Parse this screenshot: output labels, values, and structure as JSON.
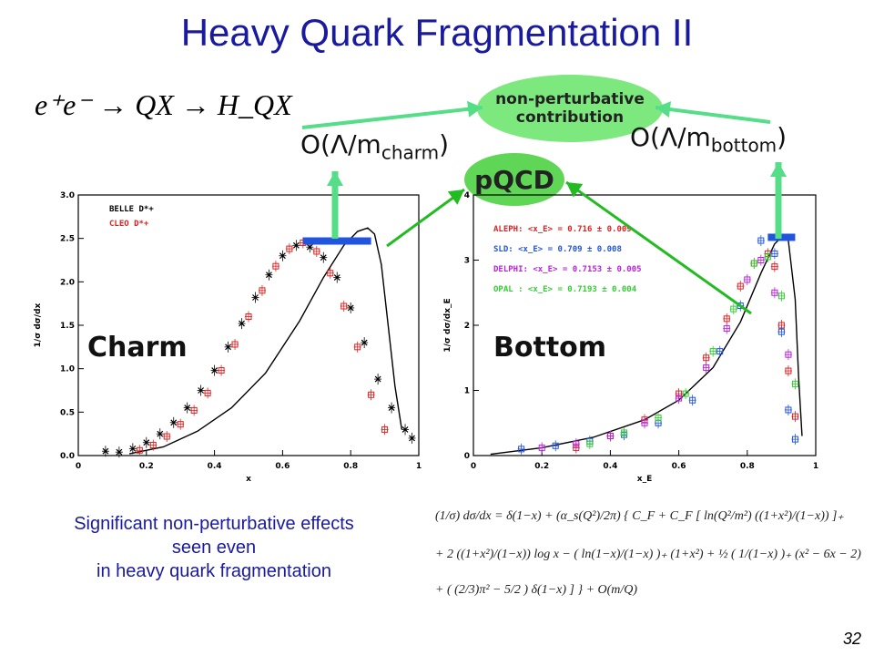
{
  "title": "Heavy Quark Fragmentation II",
  "reaction": "e⁺e⁻ → QX → H_QX",
  "annotations": {
    "non_perturbative": "non-perturbative contribution",
    "pqcd": "pQCD",
    "order_charm_prefix": "O(Λ/m",
    "order_charm_sub": "charm",
    "order_bottom_prefix": "O(Λ/m",
    "order_bottom_sub": "bottom",
    "close_paren": ")",
    "charm_label": "Charm",
    "bottom_label": "Bottom"
  },
  "caption": [
    "Significant non-perturbative effects",
    "seen even",
    "in heavy quark fragmentation"
  ],
  "formula_lines": [
    "(1/σ) dσ/dx  =  δ(1−x) + (α_s(Q²)/2π) { C_F + C_F [ ln(Q²/m²) ((1+x²)/(1−x)) ]₊",
    "+  2 ((1+x²)/(1−x)) log x − ( ln(1−x)/(1−x) )₊ (1+x²) + ½ ( 1/(1−x) )₊ (x² − 6x − 2)",
    "+  ( (2/3)π² − 5/2 ) δ(1−x) ] }  +  O(m/Q)"
  ],
  "page_number": "32",
  "colors": {
    "title": "#1a1aa0",
    "bubble": "#7de87d",
    "arrow": "#55dd88",
    "bar": "#2255dd"
  },
  "chart_data": [
    {
      "type": "scatter",
      "ylabel": "1/σ dσ/dx",
      "xlabel": "x",
      "xlim": [
        0,
        1
      ],
      "ylim": [
        0,
        3.0
      ],
      "xticks": [
        "0",
        "0.2",
        "0.4",
        "0.6",
        "0.8",
        "1"
      ],
      "yticks": [
        "0.0",
        "0.5",
        "1.0",
        "1.5",
        "2.0",
        "2.5",
        "3.0"
      ],
      "legend": [
        "BELLE D*+",
        "CLEO D*+"
      ],
      "series": [
        {
          "name": "BELLE D*+",
          "color": "#000000",
          "x": [
            0.08,
            0.12,
            0.16,
            0.2,
            0.24,
            0.28,
            0.32,
            0.36,
            0.4,
            0.44,
            0.48,
            0.52,
            0.56,
            0.6,
            0.64,
            0.68,
            0.72,
            0.76,
            0.8,
            0.84,
            0.88,
            0.92,
            0.96,
            0.98
          ],
          "y": [
            0.05,
            0.04,
            0.08,
            0.15,
            0.25,
            0.38,
            0.55,
            0.75,
            0.98,
            1.25,
            1.52,
            1.82,
            2.08,
            2.3,
            2.42,
            2.4,
            2.28,
            2.05,
            1.7,
            1.3,
            0.88,
            0.55,
            0.3,
            0.2
          ]
        },
        {
          "name": "CLEO D*+",
          "color": "#dd2222",
          "x": [
            0.18,
            0.22,
            0.26,
            0.3,
            0.34,
            0.38,
            0.42,
            0.46,
            0.5,
            0.54,
            0.58,
            0.62,
            0.66,
            0.7,
            0.74,
            0.78,
            0.82,
            0.86,
            0.9
          ],
          "y": [
            0.06,
            0.12,
            0.22,
            0.36,
            0.52,
            0.72,
            0.98,
            1.28,
            1.6,
            1.9,
            2.18,
            2.38,
            2.45,
            2.35,
            2.1,
            1.72,
            1.25,
            0.7,
            0.3
          ]
        }
      ],
      "theory_curve": {
        "x": [
          0.15,
          0.25,
          0.35,
          0.45,
          0.55,
          0.65,
          0.72,
          0.78,
          0.82,
          0.85,
          0.87,
          0.89,
          0.91,
          0.93,
          0.95
        ],
        "y": [
          0.02,
          0.1,
          0.28,
          0.55,
          0.95,
          1.55,
          2.05,
          2.42,
          2.58,
          2.62,
          2.55,
          2.2,
          1.5,
          0.8,
          0.3
        ]
      }
    },
    {
      "type": "scatter",
      "ylabel": "1/σ dσ/dx_E",
      "xlabel": "x_E",
      "xlim": [
        0,
        1
      ],
      "ylim": [
        0,
        4
      ],
      "xticks": [
        "0",
        "0.2",
        "0.4",
        "0.6",
        "0.8",
        "1"
      ],
      "yticks": [
        "0",
        "1",
        "2",
        "3",
        "4"
      ],
      "legend": [
        "ALEPH: <x_E> = 0.716 ± 0.009",
        "SLD:     <x_E> = 0.709 ± 0.008",
        "DELPHI: <x_E> = 0.7153 ± 0.005",
        "OPAL  : <x_E> = 0.7193 ± 0.004"
      ],
      "series": [
        {
          "name": "ALEPH",
          "color": "#dd2222",
          "x": [
            0.3,
            0.4,
            0.5,
            0.6,
            0.68,
            0.74,
            0.78,
            0.82,
            0.86,
            0.88,
            0.9,
            0.92,
            0.94
          ],
          "y": [
            0.12,
            0.3,
            0.55,
            0.95,
            1.5,
            2.1,
            2.6,
            2.95,
            3.1,
            2.9,
            2.0,
            1.3,
            0.6
          ]
        },
        {
          "name": "SLD",
          "color": "#2255dd",
          "x": [
            0.14,
            0.24,
            0.34,
            0.44,
            0.54,
            0.64,
            0.72,
            0.78,
            0.84,
            0.88,
            0.9,
            0.92,
            0.94
          ],
          "y": [
            0.1,
            0.15,
            0.22,
            0.32,
            0.5,
            0.85,
            1.6,
            2.3,
            3.3,
            3.1,
            1.9,
            0.7,
            0.25
          ]
        },
        {
          "name": "DELPHI",
          "color": "#bb22dd",
          "x": [
            0.2,
            0.3,
            0.4,
            0.5,
            0.6,
            0.68,
            0.74,
            0.8,
            0.84,
            0.88,
            0.92
          ],
          "y": [
            0.12,
            0.18,
            0.3,
            0.5,
            0.88,
            1.35,
            1.95,
            2.7,
            3.0,
            2.5,
            1.55
          ]
        },
        {
          "name": "OPAL",
          "color": "#33cc33",
          "x": [
            0.34,
            0.44,
            0.54,
            0.62,
            0.7,
            0.76,
            0.82,
            0.86,
            0.9,
            0.94
          ],
          "y": [
            0.18,
            0.35,
            0.58,
            0.95,
            1.6,
            2.25,
            2.95,
            3.05,
            2.45,
            1.1
          ]
        }
      ],
      "theory_curve": {
        "x": [
          0.05,
          0.2,
          0.35,
          0.5,
          0.6,
          0.7,
          0.78,
          0.84,
          0.88,
          0.9,
          0.92,
          0.94,
          0.95,
          0.96
        ],
        "y": [
          0.02,
          0.12,
          0.28,
          0.55,
          0.85,
          1.35,
          2.05,
          2.8,
          3.25,
          3.35,
          3.3,
          2.4,
          1.2,
          0.3
        ]
      }
    }
  ]
}
